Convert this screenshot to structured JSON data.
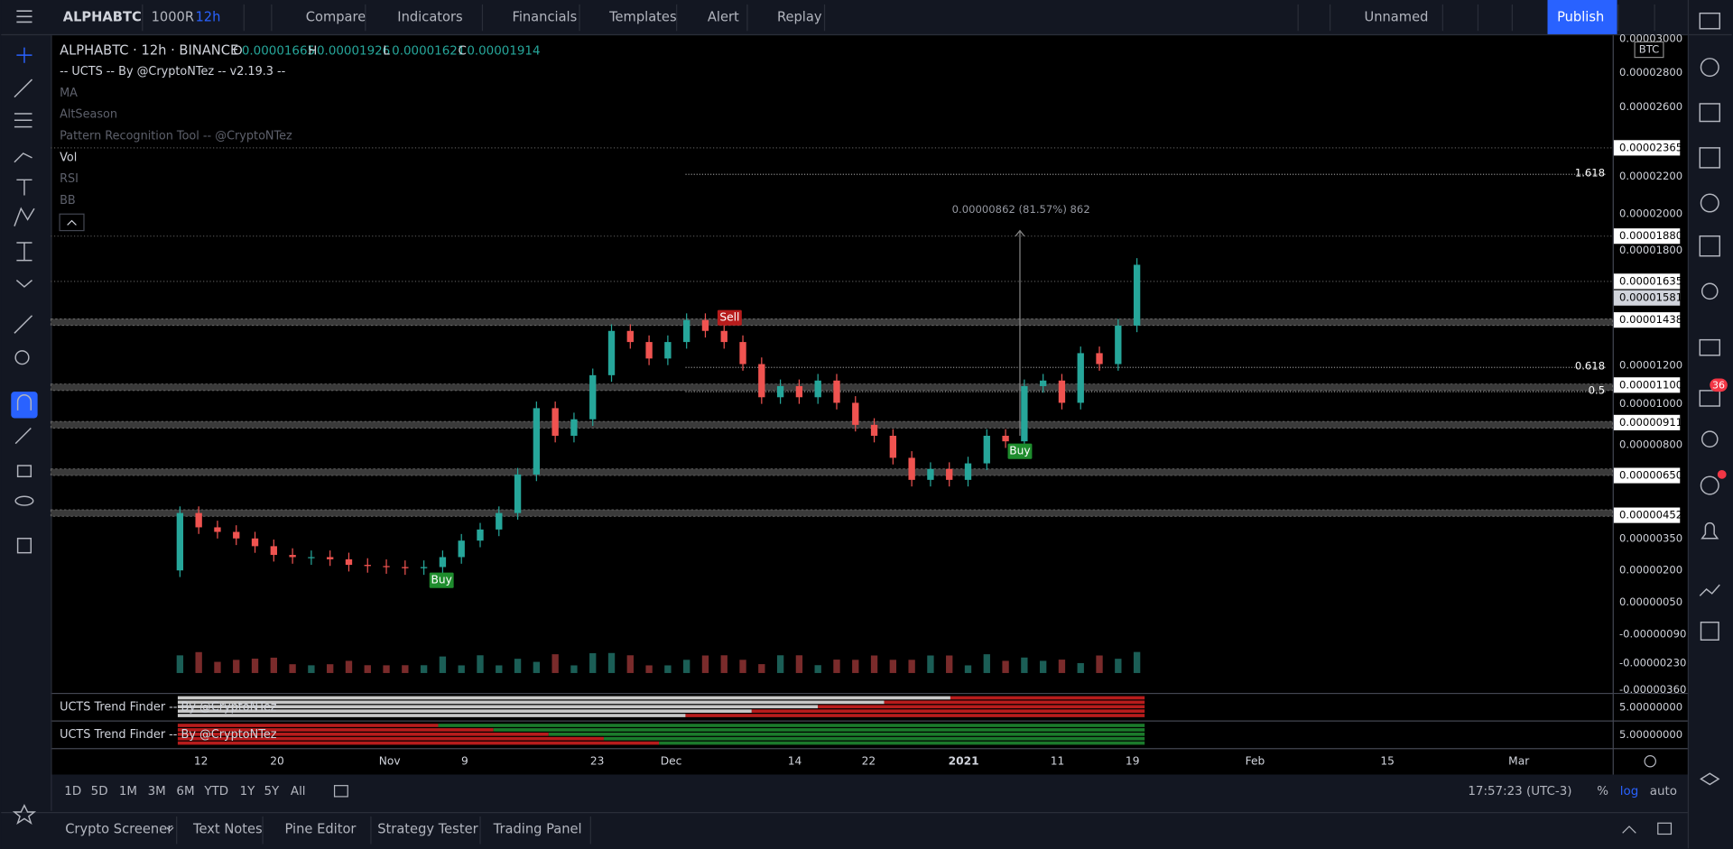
{
  "toolbar": {
    "symbol": "ALPHABTC",
    "chart_style": "1000R",
    "interval": "12h",
    "compare": "Compare",
    "indicators": "Indicators",
    "financials": "Financials",
    "templates": "Templates",
    "alert": "Alert",
    "replay": "Replay",
    "layout": "Unnamed",
    "publish": "Publish"
  },
  "legend": {
    "title": "ALPHABTC · 12h · BINANCE",
    "ohlc": [
      {
        "label": "O",
        "value": "0.00001665"
      },
      {
        "label": "H",
        "value": "0.00001926"
      },
      {
        "label": "L",
        "value": "0.00001621"
      },
      {
        "label": "C",
        "value": "0.00001914"
      }
    ],
    "indicators": [
      "-- UCTS -- By @CryptoNTez -- v2.19.3 --",
      "MA",
      "AltSeason",
      "Pattern Recognition Tool -- @CryptoNTez",
      "Vol",
      "RSI",
      "BB"
    ]
  },
  "chart": {
    "currency": "BTC",
    "price_axis": [
      "0.00003000",
      "0.00002800",
      "0.00002600",
      "0.00002365",
      "0.00002200",
      "0.00002000",
      "0.00001880",
      "0.00001800",
      "0.00001635",
      "0.00001581",
      "0.00001438",
      "0.00001200",
      "0.00001100",
      "0.00001000",
      "0.00000911",
      "0.00000800",
      "0.00000650",
      "0.00000452",
      "0.00000350",
      "0.00000200",
      "0.00000050",
      "-0.00000090",
      "-0.00000230",
      "-0.00000360"
    ],
    "closes": [
      4.89e-06,
      4.17e-06,
      3.94e-06,
      3.61e-06,
      3.22e-06,
      2.78e-06,
      2.67e-06,
      2.67e-06,
      2.56e-06,
      2.28e-06,
      2.22e-06,
      2.17e-06,
      2.11e-06,
      2.17e-06,
      2.67e-06,
      3.5e-06,
      4.06e-06,
      4.89e-06,
      6.83e-06,
      1.017e-05,
      8.78e-06,
      9.61e-06,
      1.183e-05,
      1.406e-05,
      1.35e-05,
      1.267e-05,
      1.35e-05,
      1.461e-05,
      1.406e-05,
      1.35e-05,
      1.239e-05,
      1.072e-05,
      1.128e-05,
      1.072e-05,
      1.156e-05,
      1.044e-05,
      9.33e-06,
      8.78e-06,
      7.67e-06,
      6.56e-06,
      7.11e-06,
      6.56e-06,
      7.39e-06,
      8.78e-06,
      8.5e-06,
      1.128e-05,
      1.156e-05,
      1.044e-05,
      1.294e-05,
      1.239e-05,
      1.433e-05,
      1.739e-05
    ],
    "fib_levels": [
      "1.618",
      "0.618",
      "0.5"
    ],
    "measure": "0.00000862 (81.57%) 862",
    "signals": [
      "Buy",
      "Sell",
      "Buy"
    ],
    "time_axis": [
      "12",
      "20",
      "Nov",
      "9",
      "23",
      "Dec",
      "14",
      "22",
      "2021",
      "11",
      "19",
      "Feb",
      "15",
      "Mar"
    ]
  },
  "panes": [
    {
      "name": "UCTS Trend Finder -- By @CryptoNTez",
      "value": "5.00000000"
    },
    {
      "name": "UCTS Trend Finder -- By @CryptoNTez",
      "value": "5.00000000"
    }
  ],
  "bottom_bar": {
    "ranges": [
      "1D",
      "5D",
      "1M",
      "3M",
      "6M",
      "YTD",
      "1Y",
      "5Y",
      "All"
    ],
    "clock": "17:57:23 (UTC-3)",
    "percent": "%",
    "log": "log",
    "auto": "auto"
  },
  "tabs": [
    "Crypto Screener",
    "Text Notes",
    "Pine Editor",
    "Strategy Tester",
    "Trading Panel"
  ],
  "notifications": "36"
}
